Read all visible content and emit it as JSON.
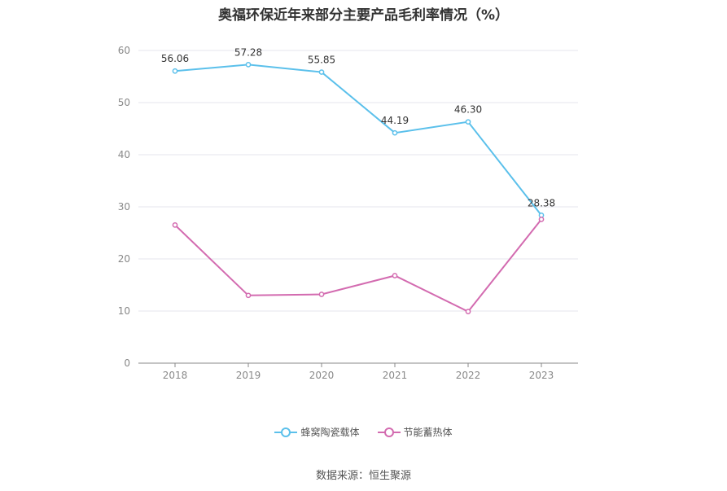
{
  "chart_data": {
    "type": "line",
    "title": "奥福环保近年来部分主要产品毛利率情况（%）",
    "categories": [
      "2018",
      "2019",
      "2020",
      "2021",
      "2022",
      "2023"
    ],
    "ylim": [
      0,
      60
    ],
    "yticks": [
      0,
      10,
      20,
      30,
      40,
      50,
      60
    ],
    "grid": true,
    "legend_position": "bottom",
    "series": [
      {
        "name": "蜂窝陶瓷载体",
        "color": "#5bc0eb",
        "values": [
          56.06,
          57.28,
          55.85,
          44.19,
          46.3,
          28.38
        ],
        "labels": [
          "56.06",
          "57.28",
          "55.85",
          "44.19",
          "46.30",
          "28.38"
        ]
      },
      {
        "name": "节能蓄热体",
        "color": "#d36bb0",
        "values": [
          26.5,
          13.0,
          13.2,
          16.8,
          9.9,
          27.6
        ]
      }
    ]
  },
  "source": "数据来源：恒生聚源"
}
